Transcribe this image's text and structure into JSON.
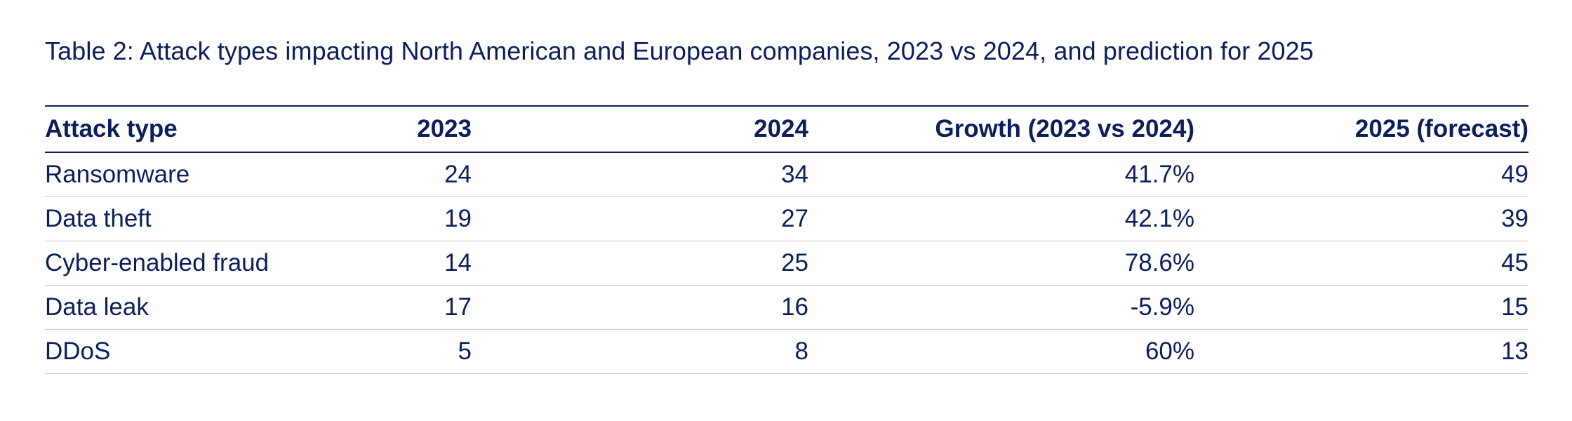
{
  "title": "Table 2: Attack types impacting North American and European companies, 2023 vs 2024, and prediction for 2025",
  "columns": [
    "Attack type",
    "2023",
    "2024",
    "Growth (2023 vs 2024)",
    "2025 (forecast)"
  ],
  "rows": [
    [
      "Ransomware",
      "24",
      "34",
      "41.7%",
      "49"
    ],
    [
      "Data theft",
      "19",
      "27",
      "42.1%",
      "39"
    ],
    [
      "Cyber-enabled fraud",
      "14",
      "25",
      "78.6%",
      "45"
    ],
    [
      "Data leak",
      "17",
      "16",
      "-5.9%",
      "15"
    ],
    [
      "DDoS",
      "5",
      "8",
      "60%",
      "13"
    ]
  ],
  "colors": {
    "text": "#0b1f5c",
    "rule": "#0b1f5c",
    "row_divider": "#c9cbd6"
  }
}
